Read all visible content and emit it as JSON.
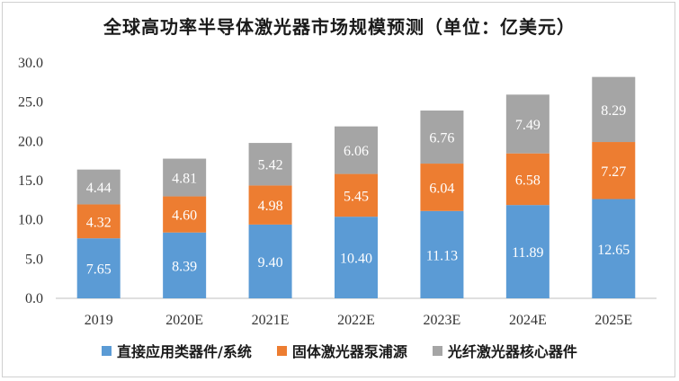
{
  "chart_data": {
    "type": "bar",
    "stacked": true,
    "title": "全球高功率半导体激光器市场规模预测（单位：亿美元）",
    "categories": [
      "2019",
      "2020E",
      "2021E",
      "2022E",
      "2023E",
      "2024E",
      "2025E"
    ],
    "series": [
      {
        "name": "直接应用类器件/系统",
        "color": "#5b9bd5",
        "values": [
          7.65,
          8.39,
          9.4,
          10.4,
          11.13,
          11.89,
          12.65
        ],
        "labels": [
          "7.65",
          "8.39",
          "9.40",
          "10.40",
          "11.13",
          "11.89",
          "12.65"
        ]
      },
      {
        "name": "固体激光器泵浦源",
        "color": "#ed7d31",
        "values": [
          4.32,
          4.6,
          4.98,
          5.45,
          6.04,
          6.58,
          7.27
        ],
        "labels": [
          "4.32",
          "4.60",
          "4.98",
          "5.45",
          "6.04",
          "6.58",
          "7.27"
        ]
      },
      {
        "name": "光纤激光器核心器件",
        "color": "#a5a5a5",
        "values": [
          4.44,
          4.81,
          5.42,
          6.06,
          6.76,
          7.49,
          8.29
        ],
        "labels": [
          "4.44",
          "4.81",
          "5.42",
          "6.06",
          "6.76",
          "7.49",
          "8.29"
        ]
      }
    ],
    "yticks": [
      "0.0",
      "5.0",
      "10.0",
      "15.0",
      "20.0",
      "25.0",
      "30.0"
    ],
    "ylim": [
      0,
      30
    ],
    "xlabel": "",
    "ylabel": "",
    "legend_position": "bottom",
    "grid": false
  }
}
